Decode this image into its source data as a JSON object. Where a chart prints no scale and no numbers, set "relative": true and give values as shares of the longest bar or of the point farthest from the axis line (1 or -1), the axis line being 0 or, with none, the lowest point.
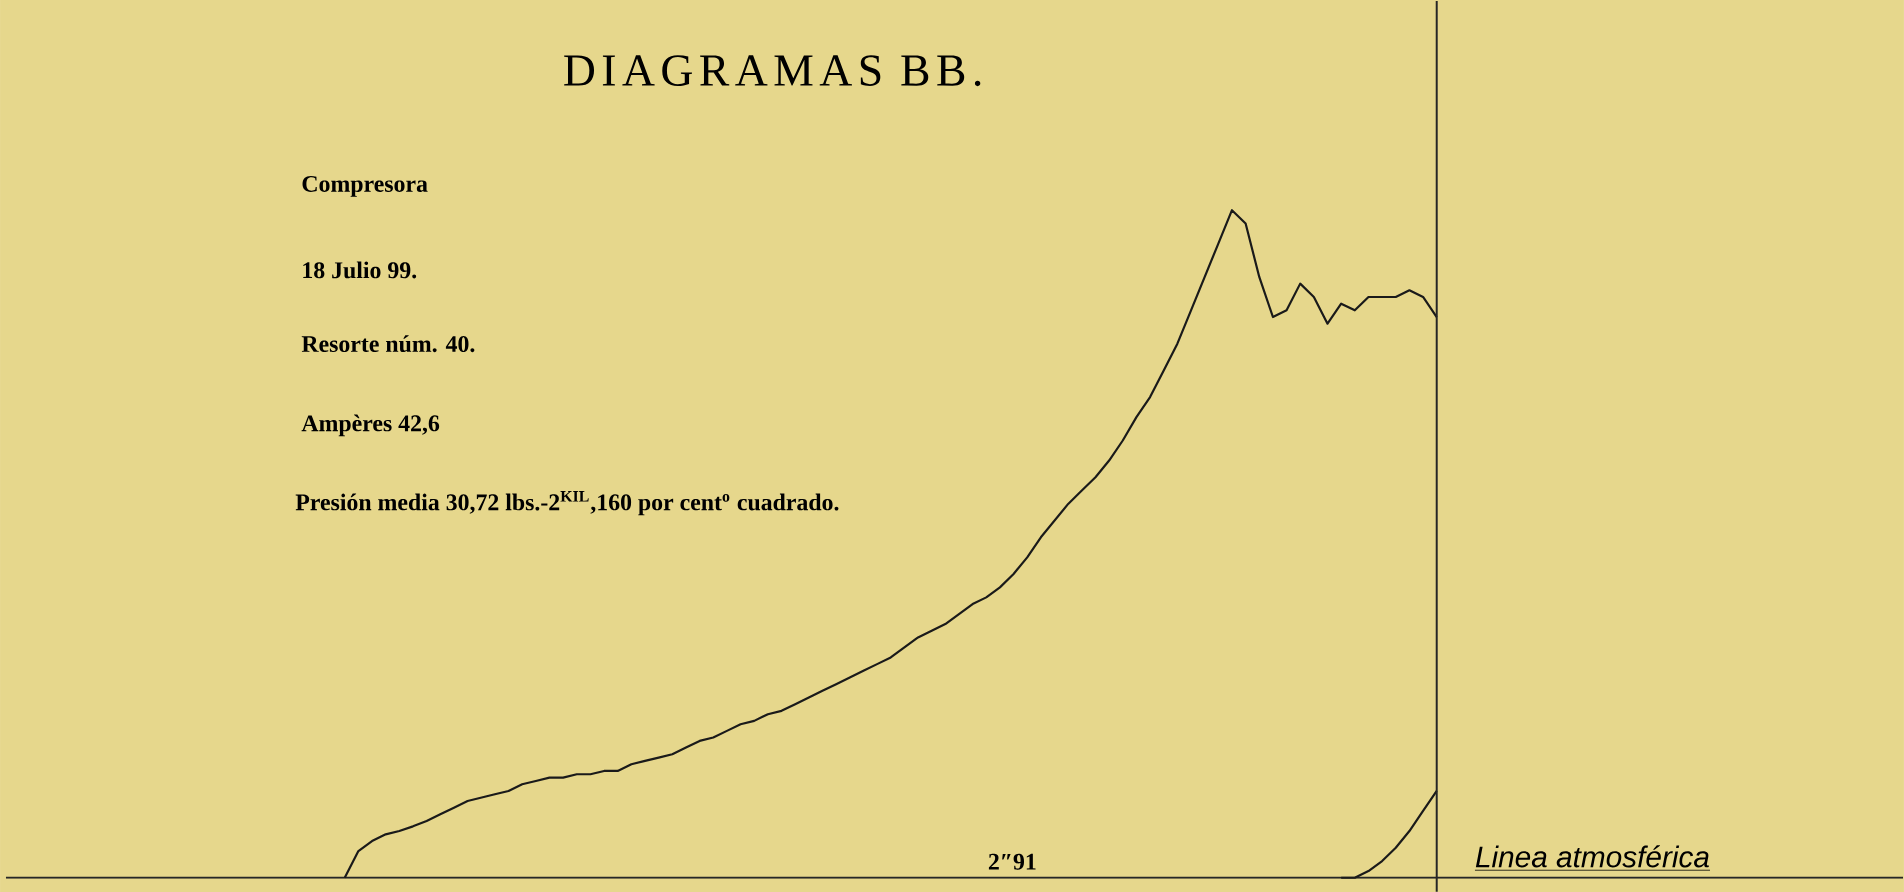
{
  "chart_data": {
    "type": "line",
    "title": "DIAGRAMAS BB.",
    "relative": true,
    "annotations": [
      "Compresora",
      "18 Julio 99.",
      "Resorte núm. 40.",
      "Ampères 42,6",
      "Presión media 30,72 lbs.-2$^{KIL}$,160 por cent$^{o}$ cuadrado.",
      "2″91",
      "Linea atmosférica"
    ],
    "categories": [
      null,
      null,
      null,
      null,
      null,
      null,
      null,
      null,
      null,
      null,
      null,
      null,
      null,
      null,
      null,
      null,
      null,
      null,
      null,
      null,
      null,
      null,
      null,
      null,
      null,
      null,
      null,
      null,
      null,
      null,
      null,
      null,
      null,
      null,
      null,
      null,
      null,
      null,
      null,
      null,
      null,
      null,
      null,
      null,
      null,
      null,
      null,
      null,
      null,
      null,
      null,
      null,
      null,
      null,
      null,
      null,
      null,
      null,
      null,
      null,
      null,
      null,
      null,
      null,
      null,
      null,
      null,
      null,
      null,
      null,
      null,
      null,
      null,
      null,
      null,
      null,
      null,
      null,
      null,
      null,
      null
    ],
    "series": [
      {
        "color": "#1a1a1a",
        "values": [
          0,
          0.04,
          0.055,
          0.065,
          0.07,
          0.077,
          0.085,
          0.095,
          0.105,
          0.115,
          0.12,
          0.125,
          0.13,
          0.14,
          0.145,
          0.15,
          0.15,
          0.155,
          0.155,
          0.16,
          0.16,
          0.17,
          0.175,
          0.18,
          0.185,
          0.195,
          0.205,
          0.21,
          0.22,
          0.23,
          0.235,
          0.245,
          0.25,
          0.26,
          0.27,
          0.28,
          0.29,
          0.3,
          0.31,
          0.32,
          0.33,
          0.345,
          0.36,
          0.37,
          0.38,
          0.395,
          0.41,
          0.42,
          0.435,
          0.455,
          0.48,
          0.51,
          0.535,
          0.56,
          0.58,
          0.6,
          0.625,
          0.655,
          0.69,
          0.72,
          0.76,
          0.8,
          0.85,
          0.9,
          0.95,
          1.0,
          0.98,
          0.9,
          0.84,
          0.85,
          0.89,
          0.87,
          0.83,
          0.86,
          0.85,
          0.87,
          0.87,
          0.87,
          0.88,
          0.87,
          0.84
        ]
      },
      {
        "color": "#1a1a1a",
        "values": [
          null,
          null,
          null,
          null,
          null,
          null,
          null,
          null,
          null,
          null,
          null,
          null,
          null,
          null,
          null,
          null,
          null,
          null,
          null,
          null,
          null,
          null,
          null,
          null,
          null,
          null,
          null,
          null,
          null,
          null,
          null,
          null,
          null,
          null,
          null,
          null,
          null,
          null,
          null,
          null,
          null,
          null,
          null,
          null,
          null,
          null,
          null,
          null,
          null,
          null,
          null,
          null,
          null,
          null,
          null,
          null,
          null,
          null,
          null,
          null,
          null,
          null,
          null,
          null,
          null,
          null,
          null,
          null,
          null,
          null,
          null,
          null,
          null,
          0,
          0,
          0.01,
          0.025,
          0.045,
          0.07,
          0.1,
          0.13
        ]
      }
    ]
  }
}
